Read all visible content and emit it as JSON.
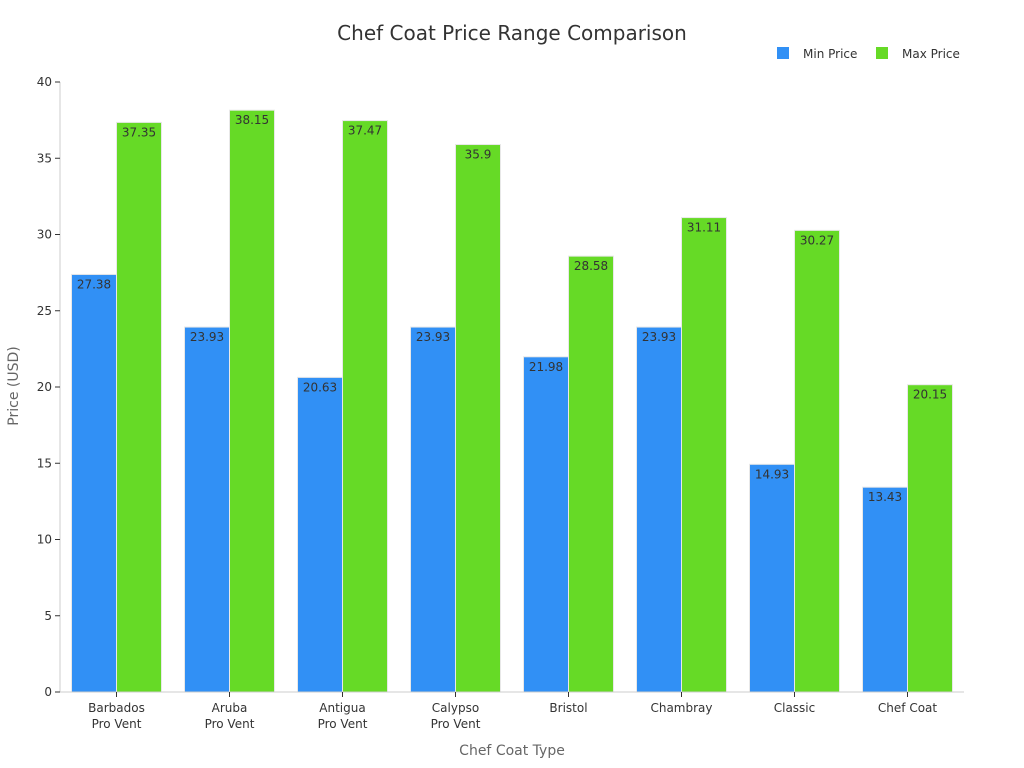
{
  "chart_data": {
    "type": "bar",
    "title": "Chef Coat Price Range Comparison",
    "xlabel": "Chef Coat Type",
    "ylabel": "Price (USD)",
    "ylim": [
      0,
      40
    ],
    "yticks": [
      0,
      5,
      10,
      15,
      20,
      25,
      30,
      35,
      40
    ],
    "grid": false,
    "legend_position": "top-right",
    "categories": [
      [
        "Barbados",
        "Pro Vent"
      ],
      [
        "Aruba",
        "Pro Vent"
      ],
      [
        "Antigua",
        "Pro Vent"
      ],
      [
        "Calypso",
        "Pro Vent"
      ],
      [
        "Bristol"
      ],
      [
        "Chambray"
      ],
      [
        "Classic"
      ],
      [
        "Chef Coat"
      ]
    ],
    "series": [
      {
        "name": "Min Price",
        "color": "#3190f5",
        "values": [
          27.38,
          23.93,
          20.63,
          23.93,
          21.98,
          23.93,
          14.93,
          13.43
        ],
        "labels": [
          "27.38",
          "23.93",
          "20.63",
          "23.93",
          "21.98",
          "23.93",
          "14.93",
          "13.43"
        ]
      },
      {
        "name": "Max Price",
        "color": "#66da26",
        "values": [
          37.35,
          38.15,
          37.47,
          35.9,
          28.58,
          31.11,
          30.27,
          20.15
        ],
        "labels": [
          "37.35",
          "38.15",
          "37.47",
          "35.9",
          "28.58",
          "31.11",
          "30.27",
          "20.15"
        ]
      }
    ]
  }
}
